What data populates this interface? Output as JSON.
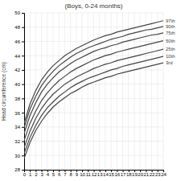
{
  "chart_data": {
    "type": "line",
    "title": "(Boys, 0-24 months)",
    "y_label": "Head circumference (cm)",
    "x": [
      0,
      1,
      2,
      3,
      4,
      5,
      6,
      7,
      8,
      9,
      10,
      11,
      12,
      13,
      14,
      15,
      16,
      17,
      18,
      19,
      20,
      21,
      22,
      23,
      24
    ],
    "xlim": [
      0,
      24
    ],
    "ylim": [
      28,
      50
    ],
    "xticks": [
      0,
      1,
      2,
      3,
      4,
      5,
      6,
      7,
      8,
      9,
      10,
      11,
      12,
      13,
      14,
      15,
      16,
      17,
      18,
      19,
      20,
      21,
      22,
      23,
      24
    ],
    "yticks": [
      28,
      30,
      32,
      34,
      36,
      38,
      40,
      42,
      44,
      46,
      48,
      50
    ],
    "grid": true,
    "color": "#444444",
    "series": [
      {
        "name": "97th",
        "values": [
          34.5,
          37.2,
          39.1,
          40.6,
          41.7,
          42.6,
          43.3,
          44.0,
          44.5,
          45.0,
          45.4,
          45.8,
          46.2,
          46.5,
          46.8,
          47.0,
          47.3,
          47.5,
          47.7,
          47.9,
          48.1,
          48.3,
          48.5,
          48.7,
          48.9
        ]
      },
      {
        "name": "90th",
        "values": [
          33.9,
          36.5,
          38.3,
          39.8,
          40.9,
          41.8,
          42.6,
          43.2,
          43.8,
          44.3,
          44.7,
          45.1,
          45.4,
          45.7,
          46.0,
          46.3,
          46.5,
          46.7,
          47.0,
          47.2,
          47.4,
          47.6,
          47.7,
          47.9,
          48.1
        ]
      },
      {
        "name": "75th",
        "values": [
          33.1,
          35.6,
          37.4,
          38.9,
          40.0,
          40.9,
          41.7,
          42.3,
          42.9,
          43.4,
          43.8,
          44.2,
          44.6,
          44.9,
          45.1,
          45.4,
          45.6,
          45.9,
          46.1,
          46.3,
          46.5,
          46.7,
          46.9,
          47.0,
          47.2
        ]
      },
      {
        "name": "50th",
        "values": [
          32.1,
          34.5,
          36.2,
          37.7,
          38.8,
          39.7,
          40.5,
          41.1,
          41.7,
          42.2,
          42.6,
          43.0,
          43.4,
          43.7,
          44.0,
          44.2,
          44.5,
          44.7,
          44.9,
          45.1,
          45.3,
          45.5,
          45.7,
          45.9,
          46.1
        ]
      },
      {
        "name": "25th",
        "values": [
          31.1,
          33.4,
          35.2,
          36.6,
          37.7,
          38.6,
          39.3,
          40.0,
          40.5,
          41.0,
          41.4,
          41.8,
          42.2,
          42.5,
          42.8,
          43.0,
          43.3,
          43.5,
          43.7,
          43.9,
          44.1,
          44.3,
          44.5,
          44.7,
          44.9
        ]
      },
      {
        "name": "10th",
        "values": [
          30.3,
          32.5,
          34.2,
          35.6,
          36.7,
          37.5,
          38.3,
          38.9,
          39.5,
          40.0,
          40.4,
          40.8,
          41.1,
          41.4,
          41.7,
          42.0,
          42.2,
          42.5,
          42.7,
          42.9,
          43.1,
          43.3,
          43.5,
          43.7,
          43.9
        ]
      },
      {
        "name": "3rd",
        "values": [
          29.6,
          31.8,
          33.5,
          34.8,
          35.9,
          36.8,
          37.5,
          38.1,
          38.7,
          39.1,
          39.6,
          40.0,
          40.3,
          40.6,
          40.9,
          41.1,
          41.4,
          41.6,
          41.8,
          42.0,
          42.2,
          42.4,
          42.6,
          42.8,
          43.0
        ]
      }
    ]
  }
}
